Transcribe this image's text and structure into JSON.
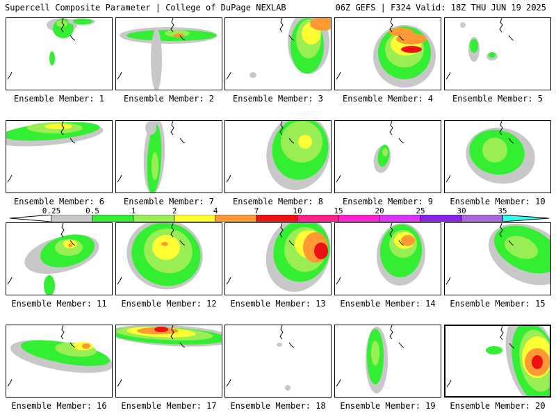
{
  "header": {
    "left": "Supercell Composite Parameter | College of DuPage NEXLAB",
    "right": "06Z GEFS | F324 Valid: 18Z THU JUN 19 2025"
  },
  "colorbar": {
    "labels": [
      "0.25",
      "0.5",
      "1",
      "2",
      "4",
      "7",
      "10",
      "15",
      "20",
      "25",
      "30",
      "35"
    ],
    "colors": [
      "#c8c8c8",
      "#33ee33",
      "#99ee55",
      "#ffff33",
      "#ff9933",
      "#ee1111",
      "#ff2288",
      "#ff22cc",
      "#dd33ff",
      "#8822ee",
      "#aa66dd",
      "#33ffee"
    ]
  },
  "panels": [
    {
      "caption": "Ensemble Member: 1"
    },
    {
      "caption": "Ensemble Member: 2"
    },
    {
      "caption": "Ensemble Member: 3"
    },
    {
      "caption": "Ensemble Member: 4"
    },
    {
      "caption": "Ensemble Member: 5"
    },
    {
      "caption": "Ensemble Member: 6"
    },
    {
      "caption": "Ensemble Member: 7"
    },
    {
      "caption": "Ensemble Member: 8"
    },
    {
      "caption": "Ensemble Member: 9"
    },
    {
      "caption": "Ensemble Member: 10"
    },
    {
      "caption": "Ensemble Member: 11"
    },
    {
      "caption": "Ensemble Member: 12"
    },
    {
      "caption": "Ensemble Member: 13"
    },
    {
      "caption": "Ensemble Member: 14"
    },
    {
      "caption": "Ensemble Member: 15"
    },
    {
      "caption": "Ensemble Member: 16"
    },
    {
      "caption": "Ensemble Member: 17"
    },
    {
      "caption": "Ensemble Member: 18"
    },
    {
      "caption": "Ensemble Member: 19"
    },
    {
      "caption": "Ensemble Member: 20"
    }
  ]
}
